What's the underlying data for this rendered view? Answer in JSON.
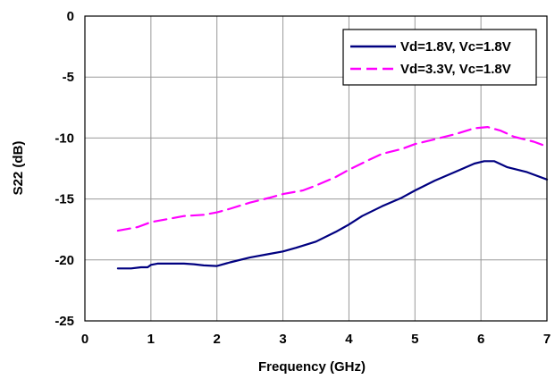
{
  "chart_data": {
    "type": "line",
    "title": "",
    "xlabel": "Frequency (GHz)",
    "ylabel": "S22 (dB)",
    "xlim": [
      0,
      7
    ],
    "ylim": [
      -25,
      0
    ],
    "x_ticks": [
      "0",
      "1",
      "2",
      "3",
      "4",
      "5",
      "6",
      "7"
    ],
    "y_ticks": [
      "0",
      "-5",
      "-10",
      "-15",
      "-20",
      "-25"
    ],
    "grid": true,
    "legend_position": "top-right",
    "series": [
      {
        "name": "Vd=1.8V, Vc=1.8V",
        "color": "#000080",
        "style": "solid",
        "x": [
          0.5,
          0.7,
          0.85,
          0.95,
          1.0,
          1.1,
          1.3,
          1.5,
          1.65,
          1.8,
          2.0,
          2.2,
          2.5,
          2.8,
          3.0,
          3.2,
          3.5,
          3.8,
          4.0,
          4.2,
          4.5,
          4.8,
          5.0,
          5.3,
          5.6,
          5.9,
          6.05,
          6.2,
          6.4,
          6.7,
          7.0
        ],
        "values": [
          -20.7,
          -20.7,
          -20.6,
          -20.6,
          -20.4,
          -20.3,
          -20.3,
          -20.3,
          -20.35,
          -20.45,
          -20.5,
          -20.2,
          -19.8,
          -19.5,
          -19.3,
          -19.0,
          -18.5,
          -17.7,
          -17.1,
          -16.4,
          -15.6,
          -14.9,
          -14.3,
          -13.5,
          -12.8,
          -12.1,
          -11.9,
          -11.9,
          -12.4,
          -12.8,
          -13.4
        ]
      },
      {
        "name": "Vd=3.3V, Vc=1.8V",
        "color": "#ff00ff",
        "style": "dashed",
        "x": [
          0.5,
          0.8,
          1.0,
          1.2,
          1.5,
          1.8,
          2.0,
          2.2,
          2.5,
          2.8,
          3.0,
          3.3,
          3.5,
          3.8,
          4.0,
          4.3,
          4.5,
          4.8,
          5.0,
          5.3,
          5.6,
          5.9,
          6.1,
          6.3,
          6.5,
          6.8,
          7.0
        ],
        "values": [
          -17.6,
          -17.3,
          -16.9,
          -16.7,
          -16.4,
          -16.3,
          -16.1,
          -15.8,
          -15.3,
          -14.9,
          -14.6,
          -14.3,
          -13.9,
          -13.2,
          -12.6,
          -11.8,
          -11.3,
          -10.9,
          -10.5,
          -10.1,
          -9.7,
          -9.2,
          -9.1,
          -9.4,
          -9.9,
          -10.3,
          -10.7
        ]
      }
    ]
  }
}
